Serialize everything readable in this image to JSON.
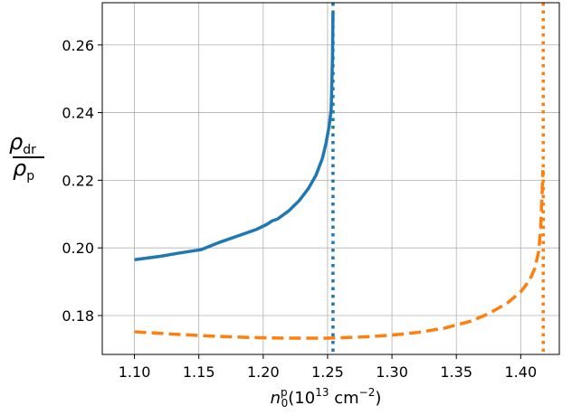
{
  "chart_data": {
    "type": "line",
    "xlabel": {
      "base": "n",
      "sup": "p",
      "sub": "0",
      "rest_open": "(10",
      "rest_exp": "13",
      "rest_unit": " cm",
      "rest_unit_exp": "−2",
      "rest_close": ")"
    },
    "ylabel": {
      "num_base": "ρ",
      "num_sub": "dr",
      "den_base": "ρ",
      "den_sub": "p"
    },
    "xlim": [
      1.075,
      1.43
    ],
    "ylim": [
      0.1685,
      0.2725
    ],
    "xticks": [
      {
        "value": 1.1,
        "label": "1.10"
      },
      {
        "value": 1.15,
        "label": "1.15"
      },
      {
        "value": 1.2,
        "label": "1.20"
      },
      {
        "value": 1.25,
        "label": "1.25"
      },
      {
        "value": 1.3,
        "label": "1.30"
      },
      {
        "value": 1.35,
        "label": "1.35"
      },
      {
        "value": 1.4,
        "label": "1.40"
      }
    ],
    "yticks": [
      {
        "value": 0.18,
        "label": "0.18"
      },
      {
        "value": 0.2,
        "label": "0.20"
      },
      {
        "value": 0.22,
        "label": "0.22"
      },
      {
        "value": 0.24,
        "label": "0.24"
      },
      {
        "value": 0.26,
        "label": "0.26"
      }
    ],
    "grid": true,
    "series": [
      {
        "style": "solid",
        "color": "#1f77b4",
        "x": [
          1.1,
          1.12,
          1.135,
          1.152,
          1.165,
          1.18,
          1.195,
          1.203,
          1.207,
          1.211,
          1.22,
          1.228,
          1.235,
          1.241,
          1.246,
          1.2488,
          1.2512,
          1.2528,
          1.2538,
          1.2542
        ],
        "y": [
          0.1965,
          0.1975,
          0.1985,
          0.1995,
          0.2015,
          0.2035,
          0.2055,
          0.207,
          0.208,
          0.2085,
          0.211,
          0.214,
          0.2175,
          0.2215,
          0.2265,
          0.231,
          0.236,
          0.241,
          0.256,
          0.2695
        ]
      },
      {
        "style": "dashed",
        "color": "#ff7f0e",
        "x": [
          1.1,
          1.13,
          1.16,
          1.19,
          1.22,
          1.25,
          1.28,
          1.3,
          1.32,
          1.34,
          1.36,
          1.375,
          1.39,
          1.4,
          1.407,
          1.411,
          1.414,
          1.4155,
          1.4165,
          1.4172
        ],
        "y": [
          0.1752,
          0.1745,
          0.1739,
          0.1735,
          0.1733,
          0.1733,
          0.1737,
          0.1742,
          0.175,
          0.1762,
          0.1782,
          0.1805,
          0.1838,
          0.187,
          0.1905,
          0.194,
          0.199,
          0.206,
          0.215,
          0.223
        ]
      }
    ],
    "vlines": [
      {
        "x": 1.2542,
        "style": "dotted",
        "color": "#1f77b4"
      },
      {
        "x": 1.4175,
        "style": "dotted",
        "color": "#ff7f0e"
      }
    ]
  }
}
